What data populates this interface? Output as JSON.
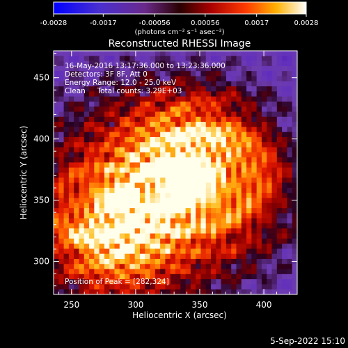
{
  "chart_data": {
    "type": "heatmap",
    "title": "Reconstructed RHESSI Image",
    "xlabel": "Heliocentric X (arcsec)",
    "ylabel": "Heliocentric Y (arcsec)",
    "xlim": [
      236,
      426
    ],
    "ylim": [
      273,
      472
    ],
    "x_ticks": [
      250,
      300,
      350,
      400
    ],
    "y_ticks": [
      300,
      350,
      400,
      450
    ],
    "colorbar": {
      "range": [
        -0.0028,
        0.0028
      ],
      "ticks": [
        "-0.0028",
        "-0.0017",
        "-0.00056",
        "0.00056",
        "0.0017",
        "0.0028"
      ],
      "unit_label": "(photons cm⁻² s⁻¹ asec⁻²)",
      "colormap": "RHESSI (blue-purple-red-orange-yellow-white)"
    },
    "annotations": [
      "16-May-2016 13:17:36.000 to 13:23:36.000",
      "Detectors: 3F 8F, Att 0",
      "Energy Range: 12.0 - 25.0 keV",
      "Clean     Total counts: 3.29E+03"
    ],
    "peak_label": "Position of Peak = [282,324]",
    "peak_position": [
      282,
      324
    ],
    "secondary_peak": [
      343,
      382
    ],
    "grid": false,
    "footer_date": "5-Sep-2022 15:10"
  }
}
